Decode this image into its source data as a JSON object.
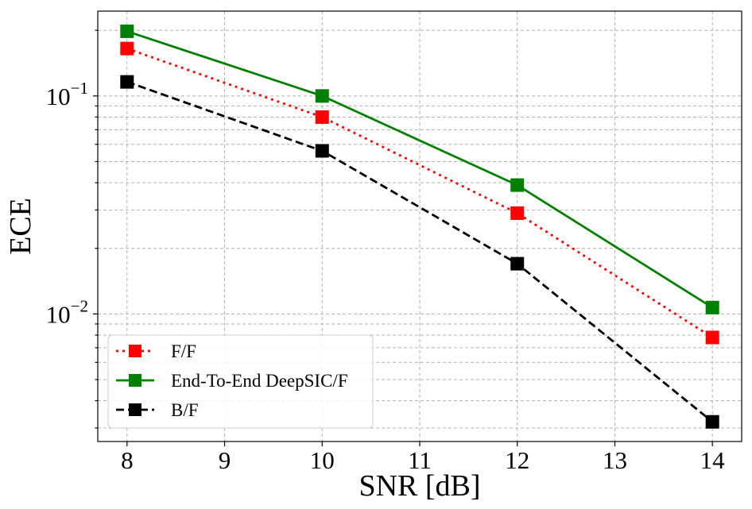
{
  "chart_data": {
    "type": "line",
    "x": [
      8,
      10,
      12,
      14
    ],
    "x_ticks": [
      8,
      9,
      10,
      11,
      12,
      13,
      14
    ],
    "xlim": [
      7.7,
      14.3
    ],
    "xlabel": "SNR [dB]",
    "ylabel": "ECE",
    "y_scale": "log",
    "ylim": [
      0.0026,
      0.245
    ],
    "y_tick_labels": [
      {
        "value": 0.1,
        "base": "10",
        "exp": "−1"
      },
      {
        "value": 0.01,
        "base": "10",
        "exp": "−2"
      }
    ],
    "grid": true,
    "legend_position": "lower-left",
    "series": [
      {
        "name": "F/F",
        "values": [
          0.165,
          0.08,
          0.029,
          0.0078
        ],
        "color": "#ff0000",
        "line_style": "dotted",
        "marker": "square"
      },
      {
        "name": "End-To-End DeepSIC/F",
        "values": [
          0.198,
          0.1,
          0.039,
          0.0107
        ],
        "color": "#008000",
        "line_style": "solid",
        "marker": "square"
      },
      {
        "name": "B/F",
        "values": [
          0.116,
          0.056,
          0.017,
          0.0032
        ],
        "color": "#000000",
        "line_style": "dashed",
        "marker": "square"
      }
    ]
  }
}
